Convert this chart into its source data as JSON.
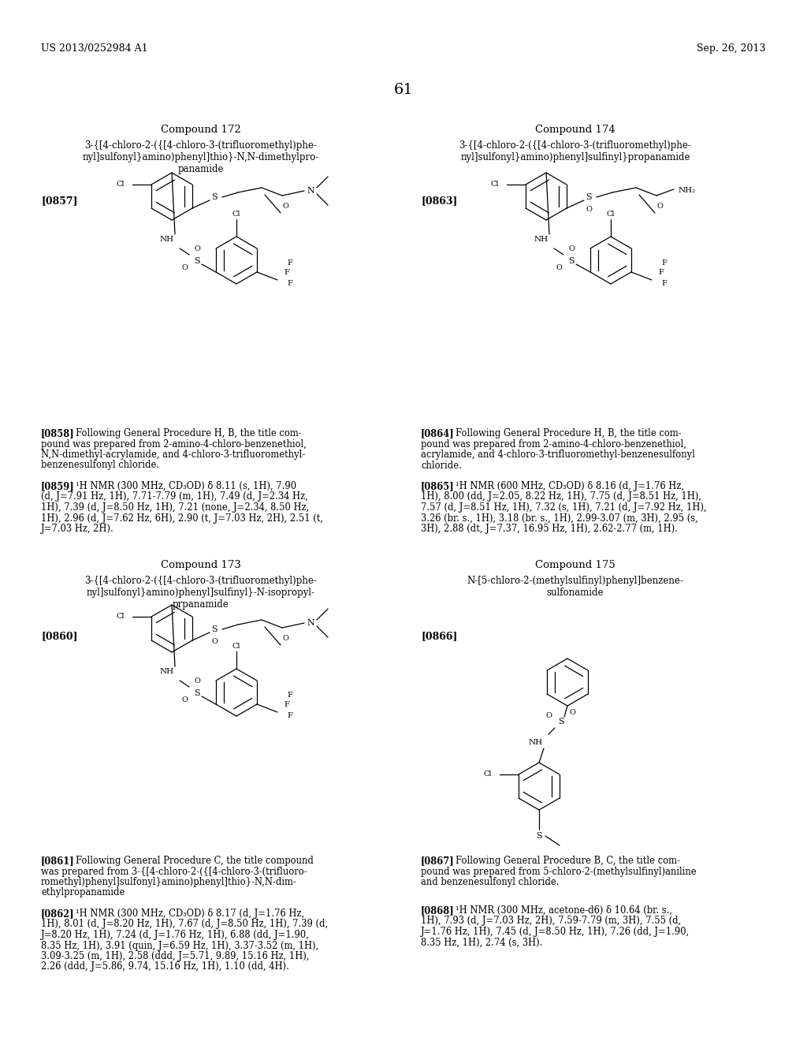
{
  "page_header_left": "US 2013/0252984 A1",
  "page_header_right": "Sep. 26, 2013",
  "page_number": "61",
  "compound172_title": "Compound 172",
  "compound172_name": "3-{[4-chloro-2-({[4-chloro-3-(trifluoromethyl)phe-\nnyl]sulfonyl}amino)phenyl]thio}-N,N-dimethylpro-\npanamide",
  "compound174_title": "Compound 174",
  "compound174_name": "3-{[4-chloro-2-({[4-chloro-3-(trifluoromethyl)phe-\nnyl]sulfonyl}amino)phenyl]sulfinyl}propanamide",
  "compound173_title": "Compound 173",
  "compound173_name": "3-{[4-chloro-2-({[4-chloro-3-(trifluoromethyl)phe-\nnyl]sulfonyl}amino)phenyl]sulfinyl}-N-isopropyl-\nprpanamide",
  "compound175_title": "Compound 175",
  "compound175_name": "N-[5-chloro-2-(methylsulfinyl)phenyl]benzene-\nsulfonamide",
  "ref857": "[0857]",
  "ref860": "[0860]",
  "ref863": "[0863]",
  "ref866": "[0866]",
  "tag858": "[0858]",
  "txt858": "Following General Procedure H, B, the title com-\npound was prepared from 2-amino-4-chloro-benzenethiol,\nN,N-dimethyl-acrylamide, and 4-chloro-3-trifluoromethyl-\nbenzenesulfonyl chloride.",
  "tag859": "[0859]",
  "txt859": "¹H NMR (300 MHz, CD₃OD) δ 8.11 (s, 1H), 7.90\n(d, J=7.91 Hz, 1H), 7.71-7.79 (m, 1H), 7.49 (d, J=2.34 Hz,\n1H), 7.39 (d, J=8.50 Hz, 1H), 7.21 (none, J=2.34, 8.50 Hz,\n1H), 2.96 (d, J=7.62 Hz, 6H), 2.90 (t, J=7.03 Hz, 2H), 2.51 (t,\nJ=7.03 Hz, 2H).",
  "tag861": "[0861]",
  "txt861": "Following General Procedure C, the title compound\nwas prepared from 3-{[4-chloro-2-({[4-chloro-3-(trifluoro-\nromethyl)phenyl]sulfonyl}amino)phenyl]thio}-N,N-dim-\nethylpropanamide",
  "tag862": "[0862]",
  "txt862": "¹H NMR (300 MHz, CD₃OD) δ 8.17 (d, J=1.76 Hz,\n1H), 8.01 (d, J=8.20 Hz, 1H), 7.67 (d, J=8.50 Hz, 1H), 7.39 (d,\nJ=8.20 Hz, 1H), 7.24 (d, J=1.76 Hz, 1H), 6.88 (dd, J=1.90,\n8.35 Hz, 1H), 3.91 (quin, J=6.59 Hz, 1H), 3.37-3.52 (m, 1H),\n3.09-3.25 (m, 1H), 2.58 (ddd, J=5.71, 9.89, 15.16 Hz, 1H),\n2.26 (ddd, J=5.86, 9.74, 15.16 Hz, 1H), 1.10 (dd, 4H).",
  "tag864": "[0864]",
  "txt864": "Following General Procedure H, B, the title com-\npound was prepared from 2-amino-4-chloro-benzenethiol,\nacrylamide, and 4-chloro-3-trifluoromethyl-benzenesulfonyl\nchloride.",
  "tag865": "[0865]",
  "txt865": "¹H NMR (600 MHz, CD₃OD) δ 8.16 (d, J=1.76 Hz,\n1H), 8.00 (dd, J=2.05, 8.22 Hz, 1H), 7.75 (d, J=8.51 Hz, 1H),\n7.57 (d, J=8.51 Hz, 1H), 7.32 (s, 1H), 7.21 (d, J=7.92 Hz, 1H),\n3.26 (br. s., 1H), 3.18 (br. s., 1H), 2.99-3.07 (m, 3H), 2.95 (s,\n3H), 2.88 (dt, J=7.37, 16.95 Hz, 1H), 2.62-2.77 (m, 1H).",
  "tag867": "[0867]",
  "txt867": "Following General Procedure B, C, the title com-\npound was prepared from 5-chloro-2-(methylsulfinyl)aniline\nand benzenesulfonyl chloride.",
  "tag868": "[0868]",
  "txt868": "¹H NMR (300 MHz, acetone-d6) δ 10.64 (br. s.,\n1H), 7.93 (d, J=7.03 Hz, 2H), 7.59-7.79 (m, 3H), 7.55 (d,\nJ=1.76 Hz, 1H), 7.45 (d, J=8.50 Hz, 1H), 7.26 (dd, J=1.90,\n8.35 Hz, 1H), 2.74 (s, 3H)."
}
